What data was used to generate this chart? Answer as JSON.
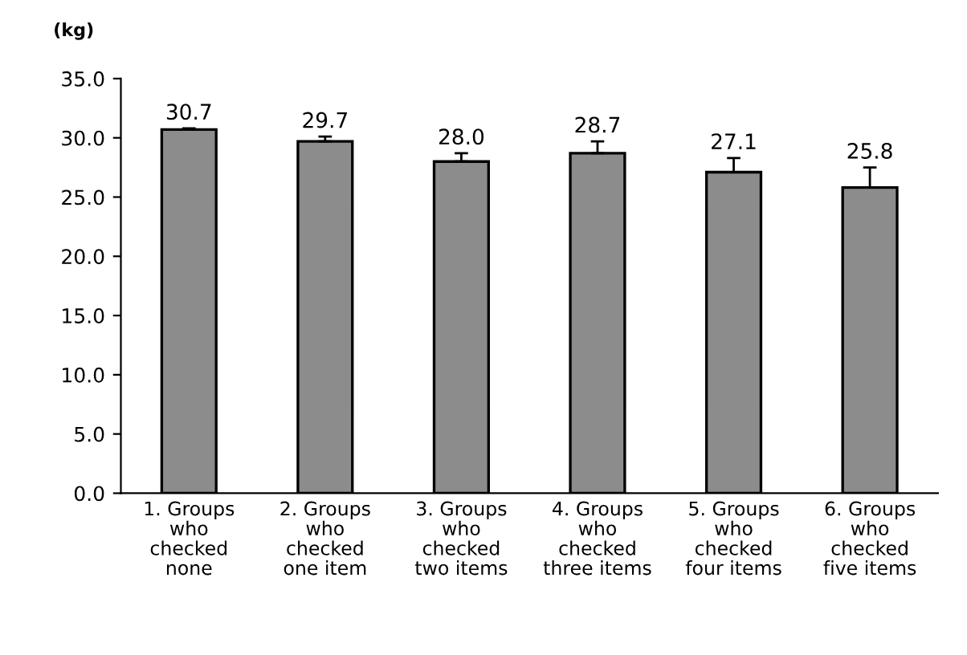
{
  "chart_data": {
    "type": "bar",
    "ylabel": "(kg)",
    "categories": [
      "1. Groups\nwho\nchecked\nnone",
      "2. Groups\nwho\nchecked\none item",
      "3. Groups\nwho\nchecked\ntwo items",
      "4. Groups\nwho\nchecked\nthree items",
      "5. Groups\nwho\nchecked\nfour items",
      "6. Groups\nwho\nchecked\nfive items"
    ],
    "values": [
      30.7,
      29.7,
      28.0,
      28.7,
      27.1,
      25.8
    ],
    "errors": [
      [
        30.7,
        30.8
      ],
      [
        29.7,
        30.1
      ],
      [
        28.0,
        28.7
      ],
      [
        28.7,
        29.7
      ],
      [
        27.1,
        28.3
      ],
      [
        25.8,
        27.5
      ]
    ],
    "color": "#8c8c8c",
    "value_labels": [
      "30.7",
      "29.7",
      "28.0",
      "28.7",
      "27.1",
      "25.8"
    ],
    "grid": false,
    "ylim": [
      0,
      35
    ],
    "yticks": [
      {
        "value": 0,
        "label": "0.0"
      },
      {
        "value": 5,
        "label": "5.0"
      },
      {
        "value": 10,
        "label": "10.0"
      },
      {
        "value": 15,
        "label": "15.0"
      },
      {
        "value": 20,
        "label": "20.0"
      },
      {
        "value": 25,
        "label": "25.0"
      },
      {
        "value": 30,
        "label": "30.0"
      },
      {
        "value": 35,
        "label": "35.0"
      }
    ]
  }
}
